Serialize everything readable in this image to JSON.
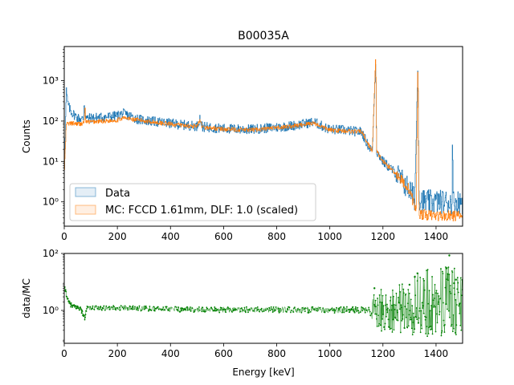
{
  "title": "B00035A",
  "chart_data": [
    {
      "type": "histogram",
      "panel": "top",
      "ylabel": "Counts",
      "xlabel": "",
      "xlim": [
        0,
        1500
      ],
      "ylim": [
        0.25,
        7000
      ],
      "yscale": "log",
      "xticks": [
        0,
        200,
        400,
        600,
        800,
        1000,
        1200,
        1400
      ],
      "yticks": [
        {
          "value": 1,
          "label": "10⁰"
        },
        {
          "value": 10,
          "label": "10¹"
        },
        {
          "value": 100,
          "label": "10²"
        },
        {
          "value": 1000,
          "label": "10³"
        }
      ],
      "legend_position": "lower-left",
      "series": [
        {
          "name": "Data",
          "color": "#1f77b4",
          "envelope": [
            [
              0,
              5
            ],
            [
              8,
              600
            ],
            [
              12,
              300
            ],
            [
              20,
              200
            ],
            [
              30,
              160
            ],
            [
              50,
              120
            ],
            [
              72,
              110
            ],
            [
              75,
              330
            ],
            [
              78,
              180
            ],
            [
              85,
              115
            ],
            [
              100,
              120
            ],
            [
              150,
              125
            ],
            [
              200,
              135
            ],
            [
              220,
              155
            ],
            [
              240,
              140
            ],
            [
              280,
              110
            ],
            [
              350,
              95
            ],
            [
              450,
              80
            ],
            [
              500,
              75
            ],
            [
              511,
              120
            ],
            [
              520,
              72
            ],
            [
              600,
              65
            ],
            [
              700,
              62
            ],
            [
              800,
              70
            ],
            [
              880,
              80
            ],
            [
              940,
              95
            ],
            [
              955,
              85
            ],
            [
              980,
              70
            ],
            [
              1000,
              62
            ],
            [
              1050,
              60
            ],
            [
              1100,
              55
            ],
            [
              1120,
              55
            ],
            [
              1140,
              28
            ],
            [
              1160,
              18
            ],
            [
              1173,
              4000
            ],
            [
              1176,
              18
            ],
            [
              1200,
              10
            ],
            [
              1250,
              5
            ],
            [
              1300,
              2
            ],
            [
              1320,
              1.2
            ],
            [
              1332,
              3200
            ],
            [
              1336,
              1.2
            ],
            [
              1360,
              1.0
            ],
            [
              1400,
              1.0
            ],
            [
              1460,
              1.0
            ],
            [
              1462,
              40
            ],
            [
              1465,
              1.0
            ],
            [
              1500,
              1.0
            ]
          ],
          "noise": 0.28
        },
        {
          "name": "MC: FCCD 1.61mm, DLF: 1.0 (scaled)",
          "color": "#ff7f0e",
          "envelope": [
            [
              0,
              5
            ],
            [
              8,
              85
            ],
            [
              30,
              88
            ],
            [
              60,
              85
            ],
            [
              75,
              90
            ],
            [
              78,
              250
            ],
            [
              81,
              95
            ],
            [
              100,
              95
            ],
            [
              200,
              105
            ],
            [
              220,
              120
            ],
            [
              260,
              110
            ],
            [
              350,
              92
            ],
            [
              450,
              78
            ],
            [
              500,
              74
            ],
            [
              511,
              100
            ],
            [
              520,
              70
            ],
            [
              600,
              63
            ],
            [
              700,
              60
            ],
            [
              800,
              68
            ],
            [
              880,
              78
            ],
            [
              940,
              90
            ],
            [
              955,
              80
            ],
            [
              980,
              68
            ],
            [
              1000,
              60
            ],
            [
              1100,
              55
            ],
            [
              1120,
              55
            ],
            [
              1140,
              30
            ],
            [
              1160,
              18
            ],
            [
              1173,
              4500
            ],
            [
              1176,
              18
            ],
            [
              1200,
              10
            ],
            [
              1250,
              5
            ],
            [
              1300,
              2
            ],
            [
              1325,
              0.6
            ],
            [
              1332,
              3800
            ],
            [
              1336,
              0.5
            ],
            [
              1400,
              0.45
            ],
            [
              1500,
              0.45
            ]
          ],
          "noise": 0.12
        }
      ]
    },
    {
      "type": "scatter",
      "panel": "bottom",
      "ylabel": "data/MC",
      "xlabel": "Energy [keV]",
      "xlim": [
        0,
        1500
      ],
      "ylim": [
        0.07,
        100
      ],
      "yscale": "log",
      "xticks": [
        0,
        200,
        400,
        600,
        800,
        1000,
        1200,
        1400
      ],
      "yticks": [
        {
          "value": 1,
          "label": "10⁰"
        },
        {
          "value": 100,
          "label": "10²"
        }
      ],
      "series": [
        {
          "name": "data/MC",
          "color": "#008000",
          "envelope": [
            [
              0,
              6
            ],
            [
              5,
              5
            ],
            [
              15,
              2
            ],
            [
              30,
              1.4
            ],
            [
              60,
              1.2
            ],
            [
              72,
              0.7
            ],
            [
              78,
              0.5
            ],
            [
              84,
              1.2
            ],
            [
              200,
              1.25
            ],
            [
              400,
              1.1
            ],
            [
              600,
              1.05
            ],
            [
              800,
              1.05
            ],
            [
              1000,
              1.05
            ],
            [
              1150,
              1.05
            ],
            [
              1180,
              1.0
            ],
            [
              1250,
              1.0
            ],
            [
              1320,
              1.5
            ],
            [
              1400,
              2.0
            ],
            [
              1500,
              2.0
            ]
          ],
          "spread": [
            [
              0,
              0.1
            ],
            [
              1150,
              0.15
            ],
            [
              1170,
              0.9
            ],
            [
              1300,
              1.2
            ],
            [
              1340,
              1.6
            ],
            [
              1500,
              1.6
            ]
          ],
          "outliers": [
            [
              1168,
              6
            ],
            [
              1300,
              8
            ],
            [
              1320,
              15
            ],
            [
              1330,
              20
            ],
            [
              1440,
              30
            ],
            [
              1450,
              85
            ],
            [
              1468,
              9
            ],
            [
              1475,
              12
            ]
          ]
        }
      ]
    }
  ]
}
